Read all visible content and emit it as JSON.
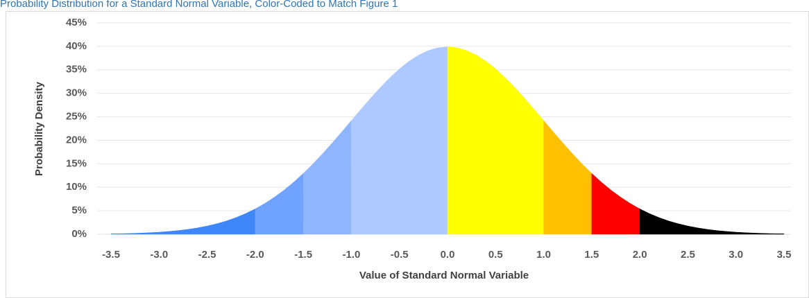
{
  "chart_data": {
    "type": "area",
    "title": "Probability Distribution for a Standard Normal Variable, Color-Coded to Match Figure 1",
    "x_label": "Value of Standard Normal Variable",
    "y_label": "Probability Density",
    "xlim": [
      -3.5,
      3.5
    ],
    "xticks": [
      -3.5,
      {
        "value": -3.0,
        "label": "-3.0"
      },
      -2.5,
      {
        "value": -2.0,
        "label": "-2.0"
      },
      -1.5,
      {
        "value": -1.0,
        "label": "-1.0"
      },
      -0.5,
      {
        "value": 0,
        "label": "0.0"
      },
      0.5,
      {
        "value": 1.0,
        "label": "1.0"
      },
      1.5,
      {
        "value": 2.0,
        "label": "2.0"
      },
      2.5,
      {
        "value": 3.0,
        "label": "3.0"
      },
      3.5
    ],
    "ylim": [
      0,
      45
    ],
    "yticks": [
      {
        "value": 0,
        "label": "0%"
      },
      {
        "value": 5,
        "label": "5%"
      },
      {
        "value": 10,
        "label": "10%"
      },
      {
        "value": 15,
        "label": "15%"
      },
      {
        "value": 20,
        "label": "20%"
      },
      {
        "value": 25,
        "label": "25%"
      },
      {
        "value": 30,
        "label": "30%"
      },
      {
        "value": 35,
        "label": "35%"
      },
      {
        "value": 40,
        "label": "40%"
      },
      {
        "value": 45,
        "label": "45%"
      }
    ],
    "grid": true,
    "series": [
      {
        "color": "#3f86f8",
        "x": [
          -3.5,
          -3.4,
          -3.3,
          -3.2,
          -3.1,
          -3.0,
          -2.9,
          -2.8,
          -2.7,
          -2.6,
          -2.5,
          -2.4,
          -2.3,
          -2.2,
          -2.1,
          -2.0
        ],
        "values": [
          0.09,
          0.12,
          0.17,
          0.24,
          0.33,
          0.44,
          0.6,
          0.79,
          1.04,
          1.36,
          1.75,
          2.24,
          2.83,
          3.55,
          4.4,
          5.4
        ]
      },
      {
        "color": "#6fa3ff",
        "x": [
          -2.0,
          -1.9,
          -1.8,
          -1.7,
          -1.6,
          -1.5
        ],
        "values": [
          5.4,
          6.56,
          7.9,
          9.4,
          11.09,
          12.95
        ]
      },
      {
        "color": "#8fb5ff",
        "x": [
          -1.5,
          -1.4,
          -1.3,
          -1.2,
          -1.1,
          -1.0
        ],
        "values": [
          12.95,
          14.97,
          17.14,
          19.42,
          21.79,
          24.2
        ]
      },
      {
        "color": "#adc9ff",
        "x": [
          -1.0,
          -0.9,
          -0.8,
          -0.7,
          -0.6,
          -0.5,
          -0.4,
          -0.3,
          -0.2,
          -0.1,
          0
        ],
        "values": [
          24.2,
          26.61,
          28.97,
          31.23,
          33.32,
          35.21,
          36.83,
          38.14,
          39.1,
          39.7,
          39.89
        ]
      },
      {
        "color": "#ffff00",
        "x": [
          0,
          0.1,
          0.2,
          0.3,
          0.4,
          0.5,
          0.6,
          0.7,
          0.8,
          0.9,
          1.0
        ],
        "values": [
          39.89,
          39.7,
          39.1,
          38.14,
          36.83,
          35.21,
          33.32,
          31.23,
          28.97,
          26.61,
          24.2
        ]
      },
      {
        "color": "#ffc000",
        "x": [
          1.0,
          1.1,
          1.2,
          1.3,
          1.4,
          1.5
        ],
        "values": [
          24.2,
          21.79,
          19.42,
          17.14,
          14.97,
          12.95
        ]
      },
      {
        "color": "#ff0000",
        "x": [
          1.5,
          1.6,
          1.7,
          1.8,
          1.9,
          2.0
        ],
        "values": [
          12.95,
          11.09,
          9.4,
          7.9,
          6.56,
          5.4
        ]
      },
      {
        "color": "#000000",
        "x": [
          2.0,
          2.1,
          2.2,
          2.3,
          2.4,
          2.5,
          2.6,
          2.7,
          2.8,
          2.9,
          3.0,
          3.1,
          3.2,
          3.3,
          3.4,
          3.5
        ],
        "values": [
          5.4,
          4.4,
          3.55,
          2.83,
          2.24,
          1.75,
          1.36,
          1.04,
          0.79,
          0.6,
          0.44,
          0.33,
          0.24,
          0.17,
          0.12,
          0.09
        ]
      }
    ]
  }
}
